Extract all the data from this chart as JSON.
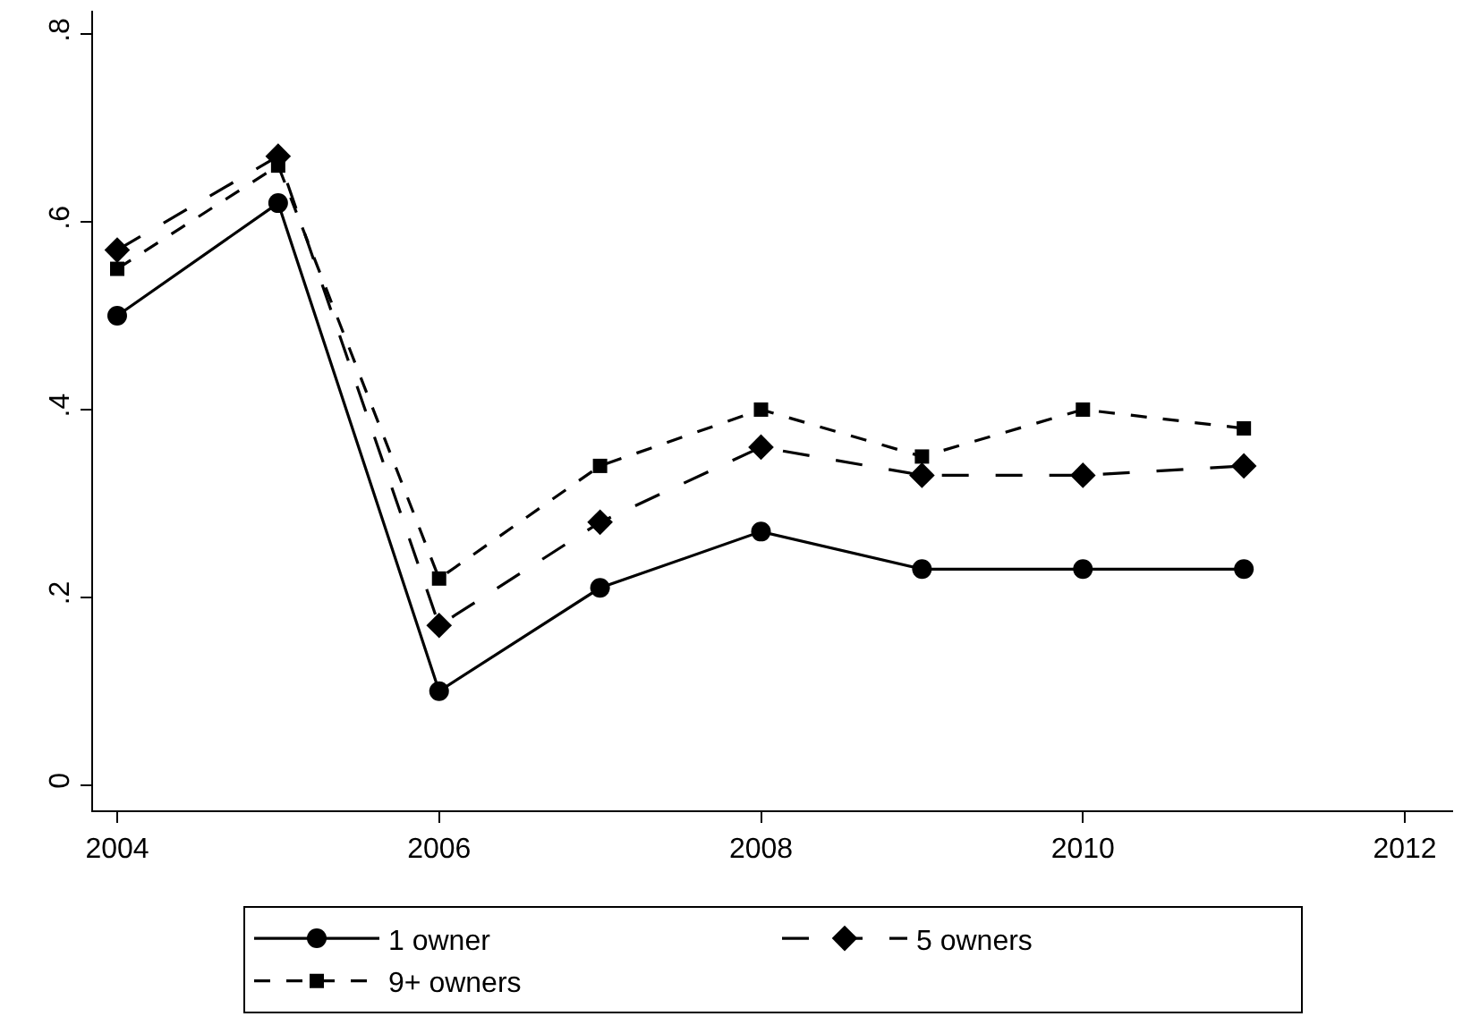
{
  "chart_data": {
    "type": "line",
    "x": [
      2004,
      2005,
      2006,
      2007,
      2008,
      2009,
      2010,
      2011
    ],
    "series": [
      {
        "name": "1 owner",
        "color": "#000000",
        "marker": "circle",
        "line_style": "solid",
        "values": [
          0.5,
          0.62,
          0.1,
          0.21,
          0.27,
          0.23,
          0.23,
          0.23
        ]
      },
      {
        "name": "5 owners",
        "color": "#000000",
        "marker": "diamond",
        "line_style": "dashed",
        "values": [
          0.57,
          0.67,
          0.17,
          0.28,
          0.36,
          0.33,
          0.33,
          0.34
        ]
      },
      {
        "name": "9+ owners",
        "color": "#000000",
        "marker": "square",
        "line_style": "dotted",
        "values": [
          0.55,
          0.66,
          0.22,
          0.34,
          0.4,
          0.35,
          0.4,
          0.38
        ]
      }
    ],
    "xlim": [
      2003.85,
      2012.3
    ],
    "xticks": [
      2004,
      2006,
      2008,
      2010,
      2012
    ],
    "ylim": [
      -0.027,
      0.825
    ],
    "yticks": [
      {
        "value": 0,
        "label": "0"
      },
      {
        "value": 0.2,
        "label": ".2"
      },
      {
        "value": 0.4,
        "label": ".4"
      },
      {
        "value": 0.6,
        "label": ".6"
      },
      {
        "value": 0.8,
        "label": ".8"
      }
    ],
    "grid": false,
    "legend": "bottom"
  }
}
